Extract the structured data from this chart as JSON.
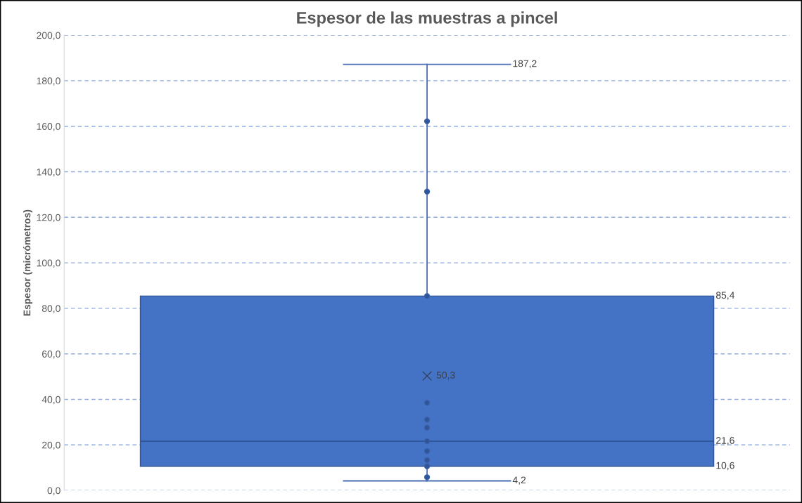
{
  "chart_data": {
    "type": "box",
    "title": "Espesor de las muestras a pincel",
    "ylabel": "Espesor (micrómetros)",
    "categories": [
      null
    ],
    "series": [
      {
        "type": "box",
        "color": "#4472c4",
        "boxes": [
          {
            "low": 4.2,
            "q1": 10.6,
            "median": 21.6,
            "q3": 85.4,
            "high": 187.2,
            "mean": 50.3
          }
        ]
      },
      {
        "type": "scatter",
        "color": "#2f5597",
        "x": [
          null,
          null,
          null,
          null,
          null,
          null,
          null,
          null,
          null,
          null,
          null
        ],
        "values": [
          162.2,
          131.3,
          85.4,
          38.5,
          31.1,
          27.6,
          21.6,
          17.3,
          13.3,
          10.6,
          5.8
        ]
      }
    ],
    "ylim": [
      0,
      200
    ],
    "yticks": [
      {
        "value": 0,
        "label": "0,0"
      },
      {
        "value": 20,
        "label": "20,0"
      },
      {
        "value": 40,
        "label": "40,0"
      },
      {
        "value": 60,
        "label": "60,0"
      },
      {
        "value": 80,
        "label": "80,0"
      },
      {
        "value": 100,
        "label": "100,0"
      },
      {
        "value": 120,
        "label": "120,0"
      },
      {
        "value": 140,
        "label": "140,0"
      },
      {
        "value": 160,
        "label": "160,0"
      },
      {
        "value": 180,
        "label": "180,0"
      },
      {
        "value": 200,
        "label": "200,0"
      }
    ],
    "grid": "y",
    "marker": "circle",
    "annotations": [
      "4,2",
      "10,6",
      "21,6",
      "85,4",
      "187,2",
      "50,3"
    ]
  }
}
